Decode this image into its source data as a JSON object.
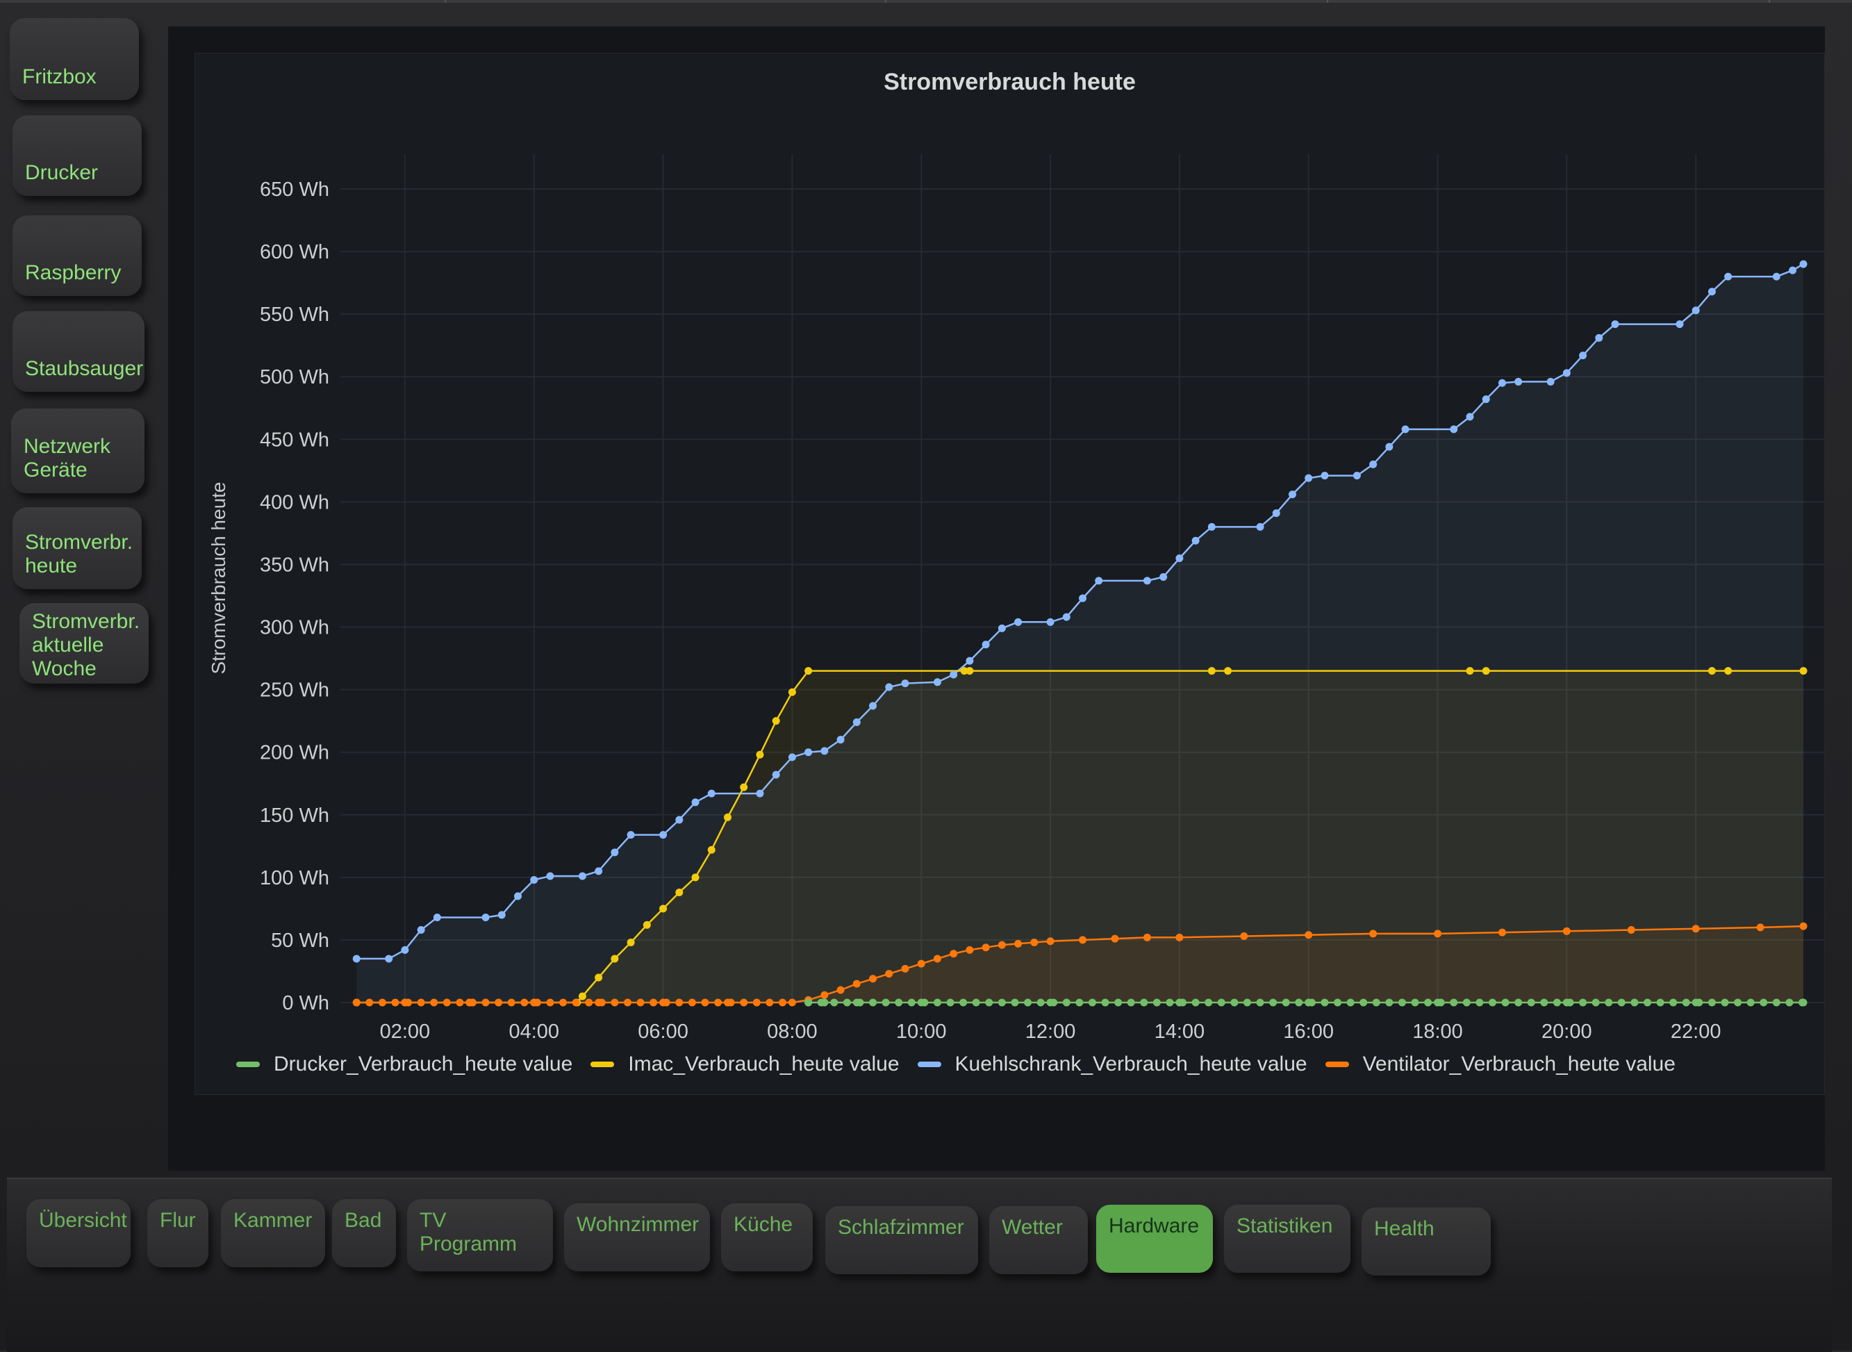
{
  "sidebar": {
    "items": [
      {
        "label": "Fritzbox"
      },
      {
        "label": "Drucker"
      },
      {
        "label": "Raspberry"
      },
      {
        "label": "Staubsauger"
      },
      {
        "label": "Netzwerk\nGeräte"
      },
      {
        "label": "Stromverbr.\nheute"
      },
      {
        "label": "Stromverbr.\naktuelle\nWoche"
      }
    ]
  },
  "tabs": [
    {
      "label": "Übersicht"
    },
    {
      "label": "Flur"
    },
    {
      "label": "Kammer"
    },
    {
      "label": "Bad"
    },
    {
      "label": "TV\nProgramm"
    },
    {
      "label": "Wohnzimmer"
    },
    {
      "label": "Küche"
    },
    {
      "label": "Schlafzimmer"
    },
    {
      "label": "Wetter"
    },
    {
      "label": "Hardware",
      "active": true
    },
    {
      "label": "Statistiken"
    },
    {
      "label": "Health"
    }
  ],
  "chart_data": {
    "type": "line",
    "title": "Stromverbrauch heute",
    "xlabel": "",
    "ylabel": "Stromverbrauch heute",
    "unit": "Wh",
    "xlim": [
      "01:00",
      "24:00"
    ],
    "ylim": [
      0,
      650
    ],
    "y_ticks": [
      "650 Wh",
      "600 Wh",
      "550 Wh",
      "500 Wh",
      "450 Wh",
      "400 Wh",
      "350 Wh",
      "300 Wh",
      "250 Wh",
      "200 Wh",
      "150 Wh",
      "100 Wh",
      "50 Wh",
      "0 Wh"
    ],
    "x_ticks": [
      "02:00",
      "04:00",
      "06:00",
      "08:00",
      "10:00",
      "12:00",
      "14:00",
      "16:00",
      "18:00",
      "20:00",
      "22:00"
    ],
    "grid": true,
    "legend_position": "bottom-left",
    "colors": {
      "Drucker_Verbrauch_heute value": "#73bf69",
      "Imac_Verbrauch_heute value": "#f2cc0c",
      "Kuehlschrank_Verbrauch_heute value": "#8ab8ff",
      "Ventilator_Verbrauch_heute value": "#ff780a"
    },
    "series": [
      {
        "name": "Drucker_Verbrauch_heute value",
        "points": [
          [
            "08:15",
            0
          ],
          [
            "08:30",
            0
          ],
          [
            "09:00",
            0
          ],
          [
            "10:00",
            0
          ],
          [
            "12:00",
            0
          ],
          [
            "14:00",
            0
          ],
          [
            "16:00",
            0
          ],
          [
            "18:00",
            0
          ],
          [
            "20:00",
            0
          ],
          [
            "22:00",
            0
          ],
          [
            "23:40",
            0
          ]
        ]
      },
      {
        "name": "Imac_Verbrauch_heute value",
        "points": [
          [
            "01:15",
            0
          ],
          [
            "02:00",
            0
          ],
          [
            "03:00",
            0
          ],
          [
            "04:00",
            0
          ],
          [
            "04:40",
            0
          ],
          [
            "04:45",
            5
          ],
          [
            "05:00",
            20
          ],
          [
            "05:15",
            35
          ],
          [
            "05:30",
            48
          ],
          [
            "05:45",
            62
          ],
          [
            "06:00",
            75
          ],
          [
            "06:15",
            88
          ],
          [
            "06:30",
            100
          ],
          [
            "06:45",
            122
          ],
          [
            "07:00",
            148
          ],
          [
            "07:15",
            172
          ],
          [
            "07:30",
            198
          ],
          [
            "07:45",
            225
          ],
          [
            "08:00",
            248
          ],
          [
            "08:15",
            265
          ],
          [
            "10:40",
            265
          ],
          [
            "10:45",
            265
          ],
          [
            "14:30",
            265
          ],
          [
            "14:45",
            265
          ],
          [
            "18:30",
            265
          ],
          [
            "18:45",
            265
          ],
          [
            "22:15",
            265
          ],
          [
            "22:30",
            265
          ],
          [
            "23:40",
            265
          ]
        ]
      },
      {
        "name": "Kuehlschrank_Verbrauch_heute value",
        "points": [
          [
            "01:15",
            35
          ],
          [
            "01:45",
            35
          ],
          [
            "02:00",
            42
          ],
          [
            "02:15",
            58
          ],
          [
            "02:30",
            68
          ],
          [
            "03:15",
            68
          ],
          [
            "03:30",
            70
          ],
          [
            "03:45",
            85
          ],
          [
            "04:00",
            98
          ],
          [
            "04:15",
            101
          ],
          [
            "04:45",
            101
          ],
          [
            "05:00",
            105
          ],
          [
            "05:15",
            120
          ],
          [
            "05:30",
            134
          ],
          [
            "06:00",
            134
          ],
          [
            "06:15",
            146
          ],
          [
            "06:30",
            160
          ],
          [
            "06:45",
            167
          ],
          [
            "07:30",
            167
          ],
          [
            "07:45",
            182
          ],
          [
            "08:00",
            196
          ],
          [
            "08:15",
            200
          ],
          [
            "08:30",
            201
          ],
          [
            "08:45",
            210
          ],
          [
            "09:00",
            224
          ],
          [
            "09:15",
            237
          ],
          [
            "09:30",
            252
          ],
          [
            "09:45",
            255
          ],
          [
            "10:15",
            256
          ],
          [
            "10:30",
            262
          ],
          [
            "10:45",
            273
          ],
          [
            "11:00",
            286
          ],
          [
            "11:15",
            299
          ],
          [
            "11:30",
            304
          ],
          [
            "12:00",
            304
          ],
          [
            "12:15",
            308
          ],
          [
            "12:30",
            323
          ],
          [
            "12:45",
            337
          ],
          [
            "13:30",
            337
          ],
          [
            "13:45",
            340
          ],
          [
            "14:00",
            355
          ],
          [
            "14:15",
            369
          ],
          [
            "14:30",
            380
          ],
          [
            "15:15",
            380
          ],
          [
            "15:30",
            391
          ],
          [
            "15:45",
            406
          ],
          [
            "16:00",
            419
          ],
          [
            "16:15",
            421
          ],
          [
            "16:45",
            421
          ],
          [
            "17:00",
            430
          ],
          [
            "17:15",
            444
          ],
          [
            "17:30",
            458
          ],
          [
            "18:15",
            458
          ],
          [
            "18:30",
            468
          ],
          [
            "18:45",
            482
          ],
          [
            "19:00",
            495
          ],
          [
            "19:15",
            496
          ],
          [
            "19:45",
            496
          ],
          [
            "20:00",
            503
          ],
          [
            "20:15",
            517
          ],
          [
            "20:30",
            531
          ],
          [
            "20:45",
            542
          ],
          [
            "21:45",
            542
          ],
          [
            "22:00",
            553
          ],
          [
            "22:15",
            568
          ],
          [
            "22:30",
            580
          ],
          [
            "23:15",
            580
          ],
          [
            "23:30",
            585
          ],
          [
            "23:40",
            590
          ]
        ]
      },
      {
        "name": "Ventilator_Verbrauch_heute value",
        "points": [
          [
            "01:15",
            0
          ],
          [
            "02:00",
            0
          ],
          [
            "03:00",
            0
          ],
          [
            "04:00",
            0
          ],
          [
            "05:00",
            0
          ],
          [
            "06:00",
            0
          ],
          [
            "07:00",
            0
          ],
          [
            "08:00",
            0
          ],
          [
            "08:15",
            2
          ],
          [
            "08:30",
            6
          ],
          [
            "08:45",
            10
          ],
          [
            "09:00",
            15
          ],
          [
            "09:15",
            19
          ],
          [
            "09:30",
            23
          ],
          [
            "09:45",
            27
          ],
          [
            "10:00",
            31
          ],
          [
            "10:15",
            35
          ],
          [
            "10:30",
            39
          ],
          [
            "10:45",
            42
          ],
          [
            "11:00",
            44
          ],
          [
            "11:15",
            46
          ],
          [
            "11:30",
            47
          ],
          [
            "11:45",
            48
          ],
          [
            "12:00",
            49
          ],
          [
            "12:30",
            50
          ],
          [
            "13:00",
            51
          ],
          [
            "13:30",
            52
          ],
          [
            "14:00",
            52
          ],
          [
            "15:00",
            53
          ],
          [
            "16:00",
            54
          ],
          [
            "17:00",
            55
          ],
          [
            "18:00",
            55
          ],
          [
            "19:00",
            56
          ],
          [
            "20:00",
            57
          ],
          [
            "21:00",
            58
          ],
          [
            "22:00",
            59
          ],
          [
            "23:00",
            60
          ],
          [
            "23:40",
            61
          ]
        ]
      }
    ]
  }
}
